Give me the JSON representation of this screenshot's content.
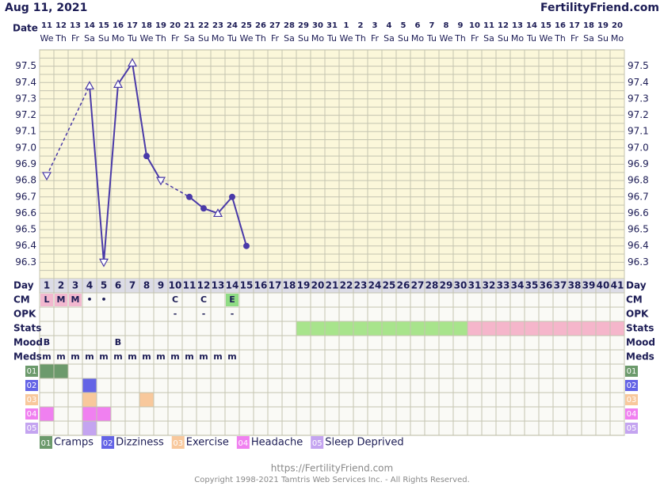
{
  "header": {
    "date": "Aug 11, 2021",
    "site": "FertilityFriend.com"
  },
  "chart_data": {
    "type": "line",
    "x_label": "Date",
    "dates": [
      "11",
      "12",
      "13",
      "14",
      "15",
      "16",
      "17",
      "18",
      "19",
      "20",
      "21",
      "22",
      "23",
      "24",
      "25",
      "26",
      "27",
      "28",
      "29",
      "30",
      "31",
      "1",
      "2",
      "3",
      "4",
      "5",
      "6",
      "7",
      "8",
      "9",
      "10",
      "11",
      "12",
      "13",
      "14",
      "15",
      "16",
      "17",
      "18",
      "19",
      "20"
    ],
    "weekdays": [
      "We",
      "Th",
      "Fr",
      "Sa",
      "Su",
      "Mo",
      "Tu",
      "We",
      "Th",
      "Fr",
      "Sa",
      "Su",
      "Mo",
      "Tu",
      "We",
      "Th",
      "Fr",
      "Sa",
      "Su",
      "Mo",
      "Tu",
      "We",
      "Th",
      "Fr",
      "Sa",
      "Su",
      "Mo",
      "Tu",
      "We",
      "Th",
      "Fr",
      "Sa",
      "Su",
      "Mo",
      "Tu",
      "We",
      "Th",
      "Fr",
      "Sa",
      "Su",
      "Mo"
    ],
    "values": [
      96.83,
      null,
      null,
      97.38,
      96.3,
      97.39,
      97.52,
      96.95,
      96.8,
      null,
      96.7,
      96.63,
      96.6,
      96.7,
      96.4,
      null,
      null,
      null,
      null,
      null,
      null,
      null,
      null,
      null,
      null,
      null,
      null,
      null,
      null,
      null,
      null,
      null,
      null,
      null,
      null,
      null,
      null,
      null,
      null,
      null,
      null
    ],
    "markers": [
      "tri-down",
      null,
      null,
      "tri-up",
      "tri-down",
      "tri-up",
      "tri-up",
      "dot",
      "tri-down",
      null,
      "dot",
      "dot",
      "tri-up",
      "dot",
      "dot",
      null,
      null,
      null,
      null,
      null,
      null,
      null,
      null,
      null,
      null,
      null,
      null,
      null,
      null,
      null,
      null,
      null,
      null,
      null,
      null,
      null,
      null,
      null,
      null,
      null,
      null
    ],
    "color": "#4a3aa8",
    "ylim": [
      96.2,
      97.6
    ],
    "yticks": [
      96.3,
      96.4,
      96.5,
      96.6,
      96.7,
      96.8,
      96.9,
      {
        "value": 97,
        "label": "97.0"
      },
      97.1,
      97.2,
      97.3,
      97.4,
      97.5
    ],
    "yticks_minor": [
      96.25,
      96.35,
      96.45,
      96.55,
      96.65,
      96.75,
      96.85,
      96.95,
      97.05,
      97.15,
      97.25,
      97.35,
      97.45,
      97.55
    ],
    "grid": true
  },
  "fertility": {
    "cycle": {
      "label": "Day",
      "days": [
        1,
        2,
        3,
        4,
        5,
        6,
        7,
        8,
        9,
        10,
        11,
        12,
        13,
        14,
        15,
        16,
        17,
        18,
        19,
        20,
        21,
        22,
        23,
        24,
        25,
        26,
        27,
        28,
        29,
        30,
        31,
        32,
        33,
        34,
        35,
        36,
        37,
        38,
        39,
        40,
        41
      ]
    },
    "cm": {
      "label": "CM",
      "days": [
        1,
        2,
        3,
        4,
        5,
        10,
        12,
        14
      ],
      "texts": [
        "L",
        "M",
        "M",
        "•",
        "•",
        "C",
        "C",
        "E"
      ],
      "highlight": [
        "#f2b8cf",
        "#f2b8cf",
        "#f2b8cf",
        null,
        null,
        null,
        null,
        "#8fdc84"
      ]
    },
    "opk": {
      "label": "OPK",
      "days": [
        10,
        12,
        14
      ],
      "texts": [
        "-",
        "-",
        "-"
      ]
    },
    "stats": {
      "label": "Stats",
      "bands": [
        {
          "color": "#a8e48c",
          "from": 19,
          "to": 30
        },
        {
          "color": "#f5b6cb",
          "from": 31,
          "to": 41
        }
      ]
    },
    "mood": {
      "label": "Mood",
      "days": [
        1,
        6
      ],
      "texts": [
        "B",
        "B"
      ]
    },
    "meds": {
      "label": "Meds",
      "days": [
        1,
        2,
        3,
        4,
        5,
        6,
        7,
        8,
        9,
        10,
        11,
        12,
        13,
        14
      ],
      "texts": [
        "m",
        "m",
        "m",
        "m",
        "m",
        "m",
        "m",
        "m",
        "m",
        "m",
        "m",
        "m",
        "m",
        "m"
      ]
    },
    "symptoms": [
      {
        "code": "01",
        "name": "Cramps",
        "color": "#6c9a6c",
        "days": [
          1,
          2
        ]
      },
      {
        "code": "02",
        "name": "Dizziness",
        "color": "#6464e6",
        "days": [
          4
        ]
      },
      {
        "code": "03",
        "name": "Exercise",
        "color": "#f8c89c",
        "days": [
          4,
          8
        ]
      },
      {
        "code": "04",
        "name": "Headache",
        "color": "#f080f0",
        "days": [
          1,
          4,
          5
        ]
      },
      {
        "code": "05",
        "name": "Sleep Deprived",
        "color": "#c4a4f0",
        "days": [
          4
        ]
      }
    ]
  },
  "footer": {
    "url": "https://FertilityFriend.com",
    "copyright": "Copyright 1998-2021 Tamtris Web Services Inc. - All Rights Reserved."
  }
}
